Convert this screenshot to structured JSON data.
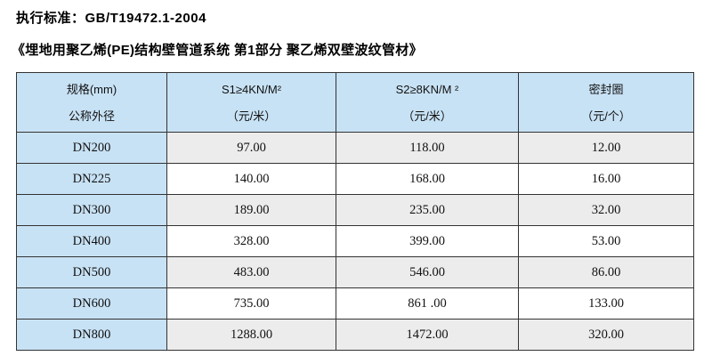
{
  "header": {
    "standard_line": "执行标准：GB/T19472.1-2004",
    "product_line": "《埋地用聚乙烯(PE)结构壁管道系统 第1部分 聚乙烯双壁波纹管材》"
  },
  "table": {
    "columns": [
      {
        "line1": "规格(mm)",
        "line2": "公称外径"
      },
      {
        "line1": "S1≥4KN/M²",
        "line2": "（元/米）"
      },
      {
        "line1": "S2≥8KN/M ²",
        "line2": "（元/米）"
      },
      {
        "line1": "密封圈",
        "line2": "（元/个）"
      }
    ],
    "rows": [
      [
        "DN200",
        "97.00",
        "118.00",
        "12.00"
      ],
      [
        "DN225",
        "140.00",
        "168.00",
        "16.00"
      ],
      [
        "DN300",
        "189.00",
        "235.00",
        "32.00"
      ],
      [
        "DN400",
        "328.00",
        "399.00",
        "53.00"
      ],
      [
        "DN500",
        "483.00",
        "546.00",
        "86.00"
      ],
      [
        "DN600",
        "735.00",
        "861 .00",
        "133.00"
      ],
      [
        "DN800",
        "1288.00",
        "1472.00",
        "320.00"
      ]
    ]
  },
  "colors": {
    "header_bg": "#c8e2f5",
    "alt_row_bg": "#ececec",
    "border": "#333333",
    "text": "#000000"
  }
}
